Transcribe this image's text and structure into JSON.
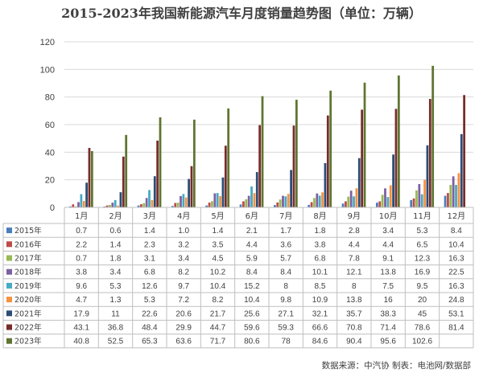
{
  "title": "2015-2023年我国新能源汽车月度销量趋势图（单位：万辆）",
  "source": "数据来源：中汽协  制表：电池网/数据部",
  "chart_data": {
    "type": "bar",
    "title": "2015-2023年我国新能源汽车月度销量趋势图（单位：万辆）",
    "ylim": [
      0,
      120
    ],
    "yticks": [
      0,
      20,
      40,
      60,
      80,
      100,
      120
    ],
    "grid": true,
    "legend": "table-left",
    "categories": [
      "1月",
      "2月",
      "3月",
      "4月",
      "5月",
      "6月",
      "7月",
      "8月",
      "9月",
      "10月",
      "11月",
      "12月"
    ],
    "series": [
      {
        "name": "2015年",
        "color": "#4a7ebb",
        "values": [
          0.7,
          0.6,
          1.4,
          1.0,
          1.4,
          2.1,
          1.7,
          1.8,
          2.8,
          3.4,
          5.3,
          8.4
        ],
        "labels": [
          "0.7",
          "0.6",
          "1.4",
          "1.0",
          "1.4",
          "2.1",
          "1.7",
          "1.8",
          "2.8",
          "3.4",
          "5.3",
          "8.4"
        ]
      },
      {
        "name": "2016年",
        "color": "#be4b48",
        "values": [
          2.2,
          1.4,
          2.3,
          3.2,
          3.5,
          4.4,
          3.6,
          3.8,
          4.4,
          4.4,
          6.5,
          10.4
        ],
        "labels": [
          "2.2",
          "1.4",
          "2.3",
          "3.2",
          "3.5",
          "4.4",
          "3.6",
          "3.8",
          "4.4",
          "4.4",
          "6.5",
          "10.4"
        ]
      },
      {
        "name": "2017年",
        "color": "#98b954",
        "values": [
          0.7,
          1.8,
          3.1,
          3.4,
          4.5,
          5.9,
          5.7,
          6.8,
          7.8,
          9.1,
          12.3,
          16.3
        ],
        "labels": [
          "0.7",
          "1.8",
          "3.1",
          "3.4",
          "4.5",
          "5.9",
          "5.7",
          "6.8",
          "7.8",
          "9.1",
          "12.3",
          "16.3"
        ]
      },
      {
        "name": "2018年",
        "color": "#7d60a0",
        "values": [
          3.8,
          3.4,
          6.8,
          8.2,
          10.2,
          8.4,
          8.4,
          10.1,
          12.1,
          13.8,
          16.9,
          22.5
        ],
        "labels": [
          "3.8",
          "3.4",
          "6.8",
          "8.2",
          "10.2",
          "8.4",
          "8.4",
          "10.1",
          "12.1",
          "13.8",
          "16.9",
          "22.5"
        ]
      },
      {
        "name": "2019年",
        "color": "#46aac5",
        "values": [
          9.6,
          5.3,
          12.6,
          9.7,
          10.4,
          15.2,
          8,
          8.5,
          8,
          7.5,
          9.5,
          16.3
        ],
        "labels": [
          "9.6",
          "5.3",
          "12.6",
          "9.7",
          "10.4",
          "15.2",
          "8",
          "8.5",
          "8",
          "7.5",
          "9.5",
          "16.3"
        ]
      },
      {
        "name": "2020年",
        "color": "#f69240",
        "values": [
          4.7,
          1.3,
          5.3,
          7.2,
          8.2,
          10.4,
          9.8,
          10.9,
          13.8,
          16,
          20,
          24.8
        ],
        "labels": [
          "4.7",
          "1.3",
          "5.3",
          "7.2",
          "8.2",
          "10.4",
          "9.8",
          "10.9",
          "13.8",
          "16",
          "20",
          "24.8"
        ]
      },
      {
        "name": "2021年",
        "color": "#2c4d75",
        "values": [
          17.9,
          11,
          22.6,
          20.6,
          21.7,
          25.6,
          27.1,
          32.1,
          35.7,
          38.3,
          45,
          53.1
        ],
        "labels": [
          "17.9",
          "11",
          "22.6",
          "20.6",
          "21.7",
          "25.6",
          "27.1",
          "32.1",
          "35.7",
          "38.3",
          "45",
          "53.1"
        ]
      },
      {
        "name": "2022年",
        "color": "#772c2a",
        "values": [
          43.1,
          36.8,
          48.4,
          29.9,
          44.7,
          59.6,
          59.3,
          66.6,
          70.8,
          71.4,
          78.6,
          81.4
        ],
        "labels": [
          "43.1",
          "36.8",
          "48.4",
          "29.9",
          "44.7",
          "59.6",
          "59.3",
          "66.6",
          "70.8",
          "71.4",
          "78.6",
          "81.4"
        ]
      },
      {
        "name": "2023年",
        "color": "#5f7530",
        "values": [
          40.8,
          52.5,
          65.3,
          63.6,
          71.7,
          80.6,
          78,
          84.6,
          90.4,
          95.6,
          102.6,
          null
        ],
        "labels": [
          "40.8",
          "52.5",
          "65.3",
          "63.6",
          "71.7",
          "80.6",
          "78",
          "84.6",
          "90.4",
          "95.6",
          "102.6",
          ""
        ]
      }
    ]
  }
}
